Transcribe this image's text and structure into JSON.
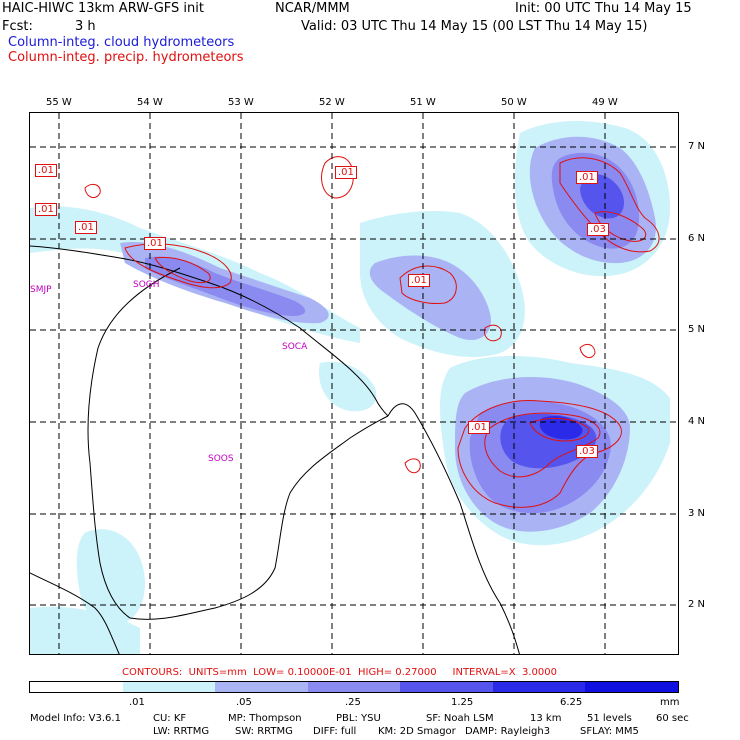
{
  "header": {
    "title_left": "HAIC-HIWC 13km ARW-GFS init",
    "title_mid": "NCAR/MMM",
    "init": "Init: 00 UTC Thu 14 May 15",
    "fcst_label": "Fcst:",
    "fcst_value": "3 h",
    "valid": "Valid: 03 UTC Thu 14 May 15 (00 LST Thu 14 May 15)",
    "field1": "Column-integ. cloud hydrometeors",
    "field2": "Column-integ. precip. hydrometeors"
  },
  "map": {
    "lon_labels": [
      "55 W",
      "54 W",
      "53 W",
      "52 W",
      "51 W",
      "50 W",
      "49 W"
    ],
    "lat_labels": [
      "7 N",
      "6 N",
      "5 N",
      "4 N",
      "3 N",
      "2 N"
    ],
    "stations": [
      "SMJP",
      "SOGH",
      "SOCA",
      "SOOS"
    ],
    "contour_labels": [
      ".01",
      ".01",
      ".01",
      ".01",
      ".01",
      ".01",
      ".01",
      ".03",
      ".01",
      ".03"
    ]
  },
  "contour_info": "CONTOURS:  UNITS=mm  LOW= 0.10000E-01  HIGH= 0.27000     INTERVAL=X  3.0000",
  "colorbar": {
    "colors": [
      "#ffffff",
      "#ccf2fa",
      "#aab4f5",
      "#8a8af0",
      "#5555ee",
      "#2a2ae8",
      "#1010e0"
    ],
    "tick_labels": [
      ".01",
      ".05",
      ".25",
      "1.25",
      "6.25",
      "mm"
    ]
  },
  "model_info": {
    "line1": [
      "Model Info: V3.6.1",
      "CU: KF",
      "MP: Thompson",
      "PBL: YSU",
      "SF: Noah LSM",
      "13 km",
      "51 levels",
      "60 sec"
    ],
    "line2": [
      "LW: RRTMG",
      "SW: RRTMG",
      "DIFF: full",
      "KM: 2D Smagor",
      "DAMP: Rayleigh3",
      "SFLAY: MM5"
    ]
  }
}
